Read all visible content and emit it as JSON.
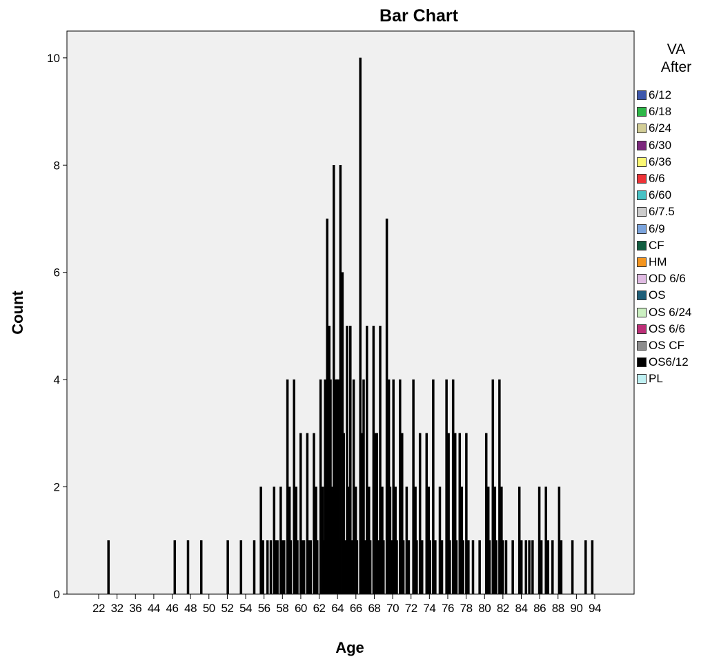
{
  "chart_data": {
    "type": "bar",
    "title": "Bar Chart",
    "xlabel": "Age",
    "ylabel": "Count",
    "ylim": [
      0,
      10.5
    ],
    "yticks": [
      0,
      2,
      4,
      6,
      8,
      10
    ],
    "legend_title": [
      "VA",
      "After"
    ],
    "legend_placement": "right",
    "x_range": [
      20,
      96
    ],
    "x_tick_labels": [
      22,
      32,
      36,
      44,
      46,
      48,
      50,
      52,
      54,
      56,
      58,
      60,
      62,
      64,
      66,
      68,
      70,
      72,
      74,
      76,
      78,
      80,
      82,
      84,
      86,
      88,
      90,
      94
    ],
    "series": [
      {
        "name": "6/12",
        "color": "#3e58ac"
      },
      {
        "name": "6/18",
        "color": "#2eb848"
      },
      {
        "name": "6/24",
        "color": "#d3ce97"
      },
      {
        "name": "6/30",
        "color": "#7c287d"
      },
      {
        "name": "6/36",
        "color": "#fbf873"
      },
      {
        "name": "6/6",
        "color": "#ef3338"
      },
      {
        "name": "6/60",
        "color": "#48c2c5"
      },
      {
        "name": "6/7.5",
        "color": "#cccccc"
      },
      {
        "name": "6/9",
        "color": "#7ba4dd"
      },
      {
        "name": "CF",
        "color": "#115e41"
      },
      {
        "name": "HM",
        "color": "#f4951e"
      },
      {
        "name": "OD 6/6",
        "color": "#e0bbe3"
      },
      {
        "name": "OS",
        "color": "#1f5f79"
      },
      {
        "name": "OS 6/24",
        "color": "#cbf0c1"
      },
      {
        "name": "OS 6/6",
        "color": "#bd2f78"
      },
      {
        "name": "OS CF",
        "color": "#8e8e8e"
      },
      {
        "name": "OS6/12",
        "color": "#000000"
      },
      {
        "name": "PL",
        "color": "#bff0f2"
      }
    ],
    "bars": [
      {
        "x": 22,
        "v": [
          1
        ]
      },
      {
        "x": 32,
        "v": [
          1
        ]
      },
      {
        "x": 34,
        "v": [
          1
        ]
      },
      {
        "x": 36,
        "v": [
          1
        ]
      },
      {
        "x": 40,
        "v": [
          1
        ]
      },
      {
        "x": 42,
        "v": [
          1
        ]
      },
      {
        "x": 44,
        "v": [
          1
        ]
      },
      {
        "x": 45,
        "v": [
          2,
          1
        ]
      },
      {
        "x": 46,
        "v": [
          1
        ]
      },
      {
        "x": 46.5,
        "v": [
          1
        ]
      },
      {
        "x": 47,
        "v": [
          2,
          1
        ]
      },
      {
        "x": 47.5,
        "v": [
          1
        ]
      },
      {
        "x": 48,
        "v": [
          2,
          1
        ]
      },
      {
        "x": 48.5,
        "v": [
          1
        ]
      },
      {
        "x": 49,
        "v": [
          4,
          2
        ]
      },
      {
        "x": 49.5,
        "v": [
          1
        ]
      },
      {
        "x": 50,
        "v": [
          4,
          2
        ]
      },
      {
        "x": 50.5,
        "v": [
          1
        ]
      },
      {
        "x": 51,
        "v": [
          3,
          1
        ]
      },
      {
        "x": 51.5,
        "v": [
          1
        ]
      },
      {
        "x": 52,
        "v": [
          3,
          1
        ]
      },
      {
        "x": 52.5,
        "v": [
          1
        ]
      },
      {
        "x": 53,
        "v": [
          3,
          2
        ]
      },
      {
        "x": 53.5,
        "v": [
          1
        ]
      },
      {
        "x": 54,
        "v": [
          4,
          2
        ]
      },
      {
        "x": 54.5,
        "v": [
          1
        ]
      },
      {
        "x": 55,
        "v": [
          7,
          5,
          4
        ]
      },
      {
        "x": 55.5,
        "v": [
          4,
          1
        ]
      },
      {
        "x": 56,
        "v": [
          8,
          4,
          2
        ]
      },
      {
        "x": 56.5,
        "v": [
          4,
          1
        ]
      },
      {
        "x": 57,
        "v": [
          8,
          6,
          4
        ]
      },
      {
        "x": 57.5,
        "v": [
          3,
          1
        ]
      },
      {
        "x": 58,
        "v": [
          5,
          2
        ]
      },
      {
        "x": 58.5,
        "v": [
          5,
          1
        ]
      },
      {
        "x": 59,
        "v": [
          4,
          2
        ]
      },
      {
        "x": 59.5,
        "v": [
          1
        ]
      },
      {
        "x": 60,
        "v": [
          10,
          3
        ]
      },
      {
        "x": 60.5,
        "v": [
          4,
          1
        ]
      },
      {
        "x": 61,
        "v": [
          5,
          2
        ]
      },
      {
        "x": 61.5,
        "v": [
          1
        ]
      },
      {
        "x": 62,
        "v": [
          5,
          3
        ]
      },
      {
        "x": 62.5,
        "v": [
          3,
          1
        ]
      },
      {
        "x": 63,
        "v": [
          5,
          2
        ]
      },
      {
        "x": 63.5,
        "v": [
          1
        ]
      },
      {
        "x": 64,
        "v": [
          7,
          4
        ]
      },
      {
        "x": 64.5,
        "v": [
          2,
          1
        ]
      },
      {
        "x": 65,
        "v": [
          4,
          2
        ]
      },
      {
        "x": 65.5,
        "v": [
          1
        ]
      },
      {
        "x": 66,
        "v": [
          4,
          3
        ]
      },
      {
        "x": 66.5,
        "v": [
          1
        ]
      },
      {
        "x": 67,
        "v": [
          2,
          1
        ]
      },
      {
        "x": 68,
        "v": [
          4,
          2
        ]
      },
      {
        "x": 68.5,
        "v": [
          1
        ]
      },
      {
        "x": 69,
        "v": [
          3,
          1
        ]
      },
      {
        "x": 70,
        "v": [
          3,
          2
        ]
      },
      {
        "x": 70.5,
        "v": [
          1
        ]
      },
      {
        "x": 71,
        "v": [
          4,
          1
        ]
      },
      {
        "x": 72,
        "v": [
          2,
          1
        ]
      },
      {
        "x": 73,
        "v": [
          4,
          3
        ]
      },
      {
        "x": 73.5,
        "v": [
          1
        ]
      },
      {
        "x": 74,
        "v": [
          4,
          3
        ]
      },
      {
        "x": 74.5,
        "v": [
          1
        ]
      },
      {
        "x": 75,
        "v": [
          3,
          2
        ]
      },
      {
        "x": 75.5,
        "v": [
          1
        ]
      },
      {
        "x": 76,
        "v": [
          3,
          1
        ]
      },
      {
        "x": 77,
        "v": [
          1
        ]
      },
      {
        "x": 78,
        "v": [
          1
        ]
      },
      {
        "x": 79,
        "v": [
          3,
          2
        ]
      },
      {
        "x": 79.5,
        "v": [
          1
        ]
      },
      {
        "x": 80,
        "v": [
          4,
          2
        ]
      },
      {
        "x": 80.5,
        "v": [
          1
        ]
      },
      {
        "x": 81,
        "v": [
          4,
          2
        ]
      },
      {
        "x": 81.5,
        "v": [
          1
        ]
      },
      {
        "x": 82,
        "v": [
          1
        ]
      },
      {
        "x": 83,
        "v": [
          1
        ]
      },
      {
        "x": 84,
        "v": [
          2,
          1
        ]
      },
      {
        "x": 85,
        "v": [
          1
        ]
      },
      {
        "x": 85.5,
        "v": [
          1
        ]
      },
      {
        "x": 86,
        "v": [
          1
        ]
      },
      {
        "x": 87,
        "v": [
          2,
          1
        ]
      },
      {
        "x": 88,
        "v": [
          2,
          1
        ]
      },
      {
        "x": 89,
        "v": [
          1
        ]
      },
      {
        "x": 90,
        "v": [
          2,
          1
        ]
      },
      {
        "x": 92,
        "v": [
          1
        ]
      },
      {
        "x": 94,
        "v": [
          1
        ]
      },
      {
        "x": 95,
        "v": [
          1
        ]
      }
    ]
  }
}
